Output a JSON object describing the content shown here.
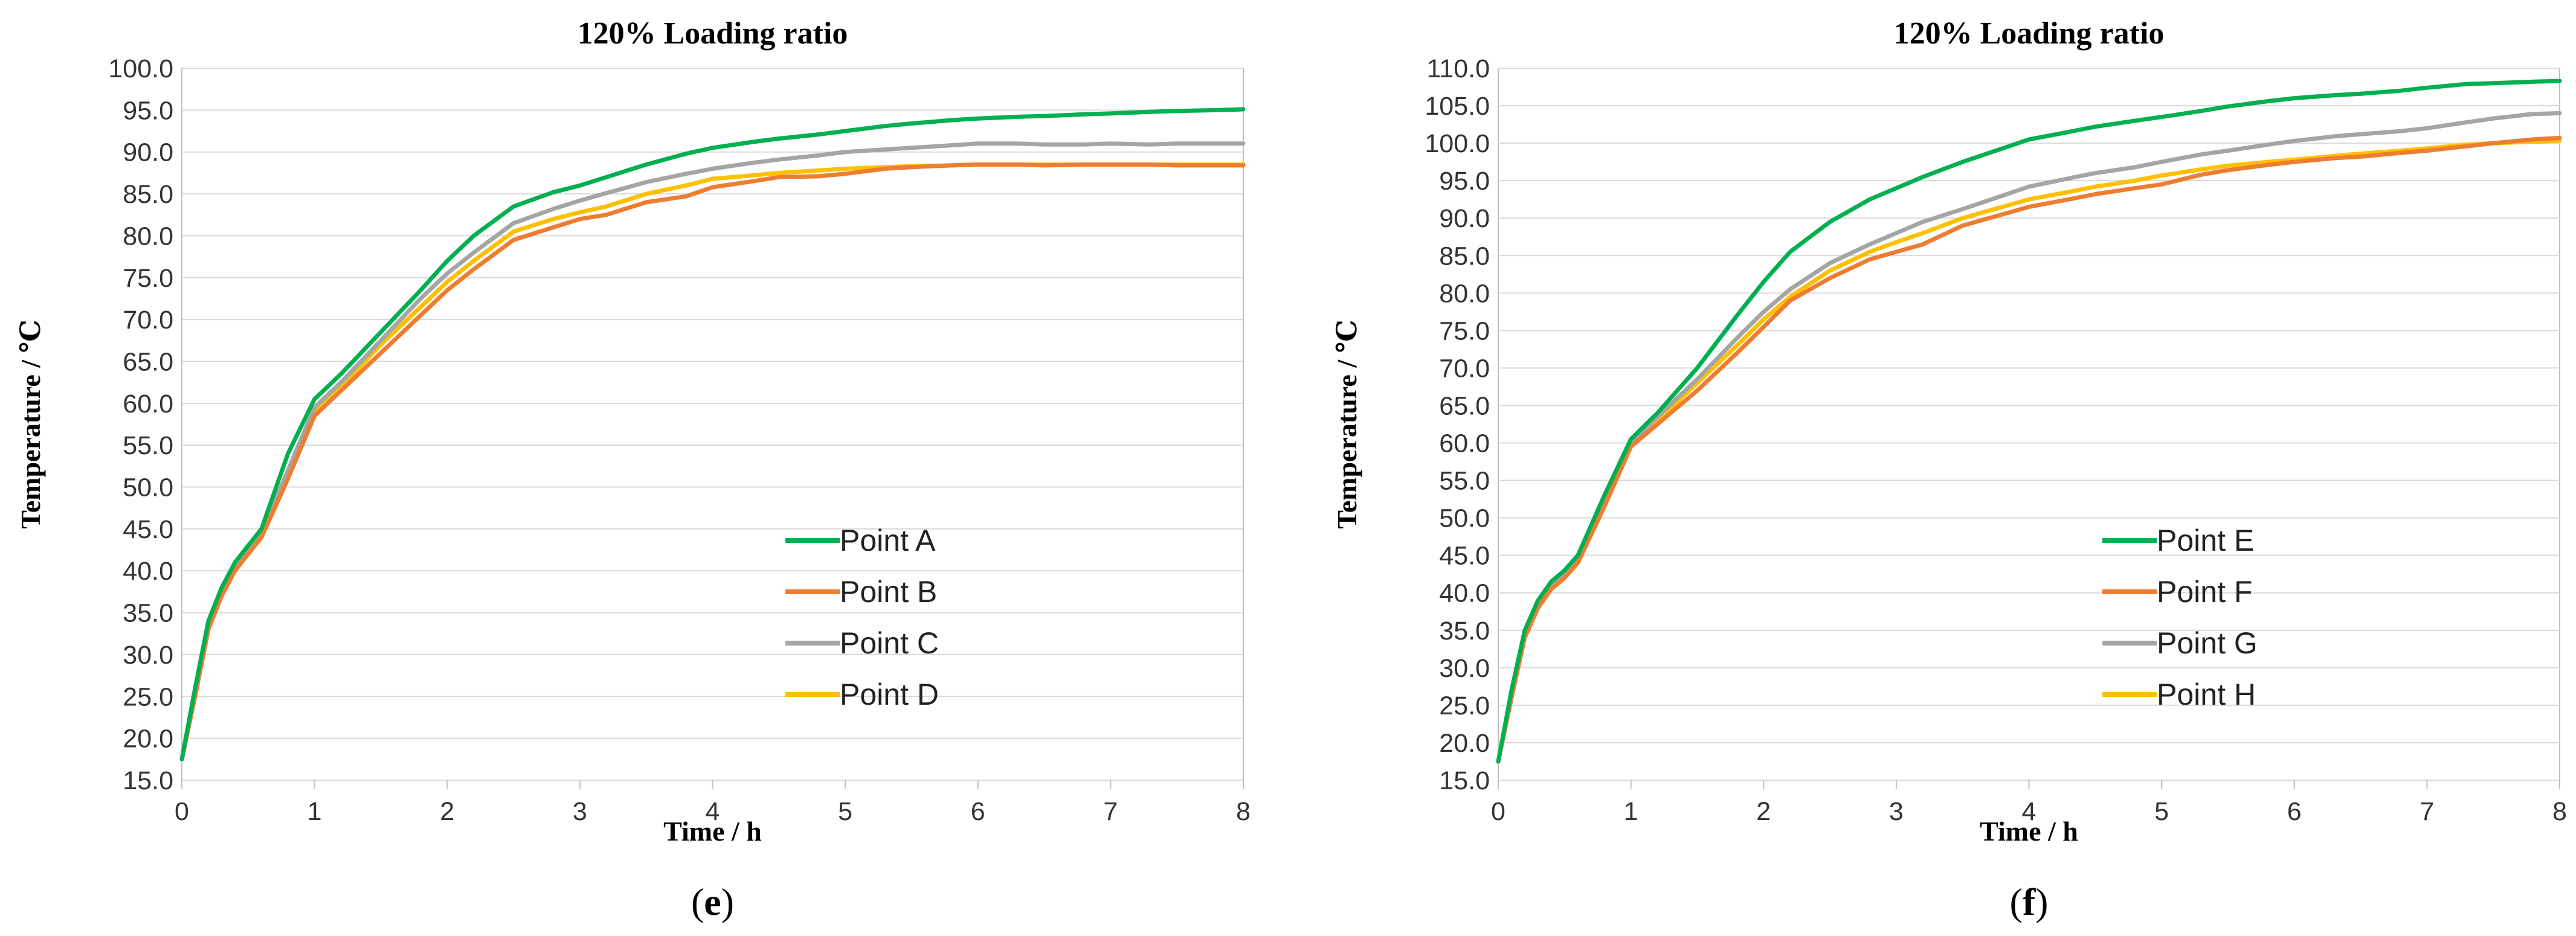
{
  "colors": {
    "grid": "#d9d9d9",
    "axis": "#bfbfbf",
    "series": [
      "#00b050",
      "#ed7d31",
      "#a5a5a5",
      "#ffc000"
    ]
  },
  "chart_data": [
    {
      "type": "line",
      "title": "120% Loading ratio",
      "xlabel": "Time / h",
      "ylabel": "Temperature / ℃",
      "xlim": [
        0,
        8
      ],
      "ylim": [
        15,
        100
      ],
      "xticks": [
        0,
        1,
        2,
        3,
        4,
        5,
        6,
        7,
        8
      ],
      "xtick_labels": [
        "0",
        "1",
        "2",
        "3",
        "4",
        "5",
        "6",
        "7",
        "8"
      ],
      "yticks": [
        15,
        20,
        25,
        30,
        35,
        40,
        45,
        50,
        55,
        60,
        65,
        70,
        75,
        80,
        85,
        90,
        95,
        100
      ],
      "ytick_labels": [
        "15.0",
        "20.0",
        "25.0",
        "30.0",
        "35.0",
        "40.0",
        "45.0",
        "50.0",
        "55.0",
        "60.0",
        "65.0",
        "70.0",
        "75.0",
        "80.0",
        "85.0",
        "90.0",
        "95.0",
        "100.0"
      ],
      "grid": true,
      "legend_position": "lower-right",
      "caption": "e",
      "x": [
        0,
        0.1,
        0.2,
        0.3,
        0.4,
        0.5,
        0.6,
        0.8,
        1.0,
        1.2,
        1.5,
        1.8,
        2.0,
        2.2,
        2.5,
        2.8,
        3.0,
        3.2,
        3.5,
        3.8,
        4.0,
        4.3,
        4.5,
        4.8,
        5.0,
        5.3,
        5.5,
        5.8,
        6.0,
        6.3,
        6.5,
        6.8,
        7.0,
        7.3,
        7.5,
        7.8,
        8.0
      ],
      "series": [
        {
          "name": "Point A",
          "values": [
            17.5,
            26,
            34,
            38,
            41,
            43,
            45,
            54,
            60.5,
            63.5,
            68.5,
            73.5,
            77,
            80,
            83.5,
            85.2,
            86,
            87,
            88.5,
            89.8,
            90.5,
            91.2,
            91.6,
            92.1,
            92.5,
            93.1,
            93.4,
            93.8,
            94,
            94.2,
            94.3,
            94.5,
            94.6,
            94.8,
            94.9,
            95,
            95.1
          ]
        },
        {
          "name": "Point B",
          "values": [
            17.5,
            25,
            33,
            37,
            40,
            42,
            44,
            51,
            58.5,
            61.5,
            66,
            70.5,
            73.5,
            76,
            79.5,
            81,
            82,
            82.5,
            84,
            84.7,
            85.8,
            86.5,
            87,
            87.1,
            87.4,
            88,
            88.2,
            88.4,
            88.5,
            88.5,
            88.4,
            88.5,
            88.5,
            88.5,
            88.4,
            88.4,
            88.4
          ]
        },
        {
          "name": "Point C",
          "values": [
            17.5,
            25.5,
            33.5,
            37.5,
            40.5,
            42.5,
            44.5,
            52,
            59.5,
            62.5,
            67.5,
            72.5,
            75.5,
            78,
            81.5,
            83.2,
            84.2,
            85.1,
            86.4,
            87.4,
            88,
            88.7,
            89.1,
            89.6,
            90,
            90.3,
            90.5,
            90.8,
            91,
            91,
            90.9,
            90.9,
            91,
            90.9,
            91,
            91,
            91
          ]
        },
        {
          "name": "Point D",
          "values": [
            17.5,
            25.2,
            33.2,
            37.2,
            40.2,
            42.2,
            44.2,
            51.5,
            59,
            62,
            67,
            71.5,
            74.5,
            77,
            80.5,
            82,
            82.8,
            83.5,
            85,
            86,
            86.8,
            87.2,
            87.5,
            87.8,
            88,
            88.2,
            88.3,
            88.4,
            88.5,
            88.5,
            88.5,
            88.5,
            88.5,
            88.5,
            88.5,
            88.5,
            88.5
          ]
        }
      ]
    },
    {
      "type": "line",
      "title": "120% Loading ratio",
      "xlabel": "Time / h",
      "ylabel": "Temperature / ℃",
      "xlim": [
        0,
        8
      ],
      "ylim": [
        15,
        110
      ],
      "xticks": [
        0,
        1,
        2,
        3,
        4,
        5,
        6,
        7,
        8
      ],
      "xtick_labels": [
        "0",
        "1",
        "2",
        "3",
        "4",
        "5",
        "6",
        "7",
        "8"
      ],
      "yticks": [
        15,
        20,
        25,
        30,
        35,
        40,
        45,
        50,
        55,
        60,
        65,
        70,
        75,
        80,
        85,
        90,
        95,
        100,
        105,
        110
      ],
      "ytick_labels": [
        "15.0",
        "20.0",
        "25.0",
        "30.0",
        "35.0",
        "40.0",
        "45.0",
        "50.0",
        "55.0",
        "60.0",
        "65.0",
        "70.0",
        "75.0",
        "80.0",
        "85.0",
        "90.0",
        "95.0",
        "100.0",
        "105.0",
        "110.0"
      ],
      "grid": true,
      "legend_position": "lower-right",
      "caption": "f",
      "x": [
        0,
        0.1,
        0.2,
        0.3,
        0.4,
        0.5,
        0.6,
        0.8,
        1.0,
        1.2,
        1.5,
        1.8,
        2.0,
        2.2,
        2.5,
        2.8,
        3.0,
        3.2,
        3.5,
        3.8,
        4.0,
        4.3,
        4.5,
        4.8,
        5.0,
        5.3,
        5.5,
        5.8,
        6.0,
        6.3,
        6.5,
        6.8,
        7.0,
        7.3,
        7.5,
        7.8,
        8.0
      ],
      "series": [
        {
          "name": "Point E",
          "values": [
            17.5,
            27,
            35,
            39,
            41.5,
            43,
            45,
            53,
            60.5,
            64,
            70,
            77,
            81.5,
            85.5,
            89.5,
            92.5,
            94,
            95.5,
            97.5,
            99.3,
            100.5,
            101.5,
            102.2,
            103,
            103.5,
            104.3,
            104.9,
            105.6,
            106,
            106.4,
            106.6,
            107,
            107.4,
            107.9,
            108,
            108.2,
            108.3
          ]
        },
        {
          "name": "Point F",
          "values": [
            17.5,
            26,
            34,
            38,
            40.5,
            42,
            44,
            51.5,
            59.5,
            62.5,
            67,
            72,
            75.5,
            79,
            82,
            84.5,
            85.5,
            86.5,
            89,
            90.5,
            91.5,
            92.5,
            93.2,
            94,
            94.5,
            95.8,
            96.4,
            97.1,
            97.5,
            98,
            98.2,
            98.7,
            99,
            99.6,
            100,
            100.5,
            100.7
          ]
        },
        {
          "name": "Point G",
          "values": [
            17.5,
            26.5,
            34.5,
            38.5,
            41,
            42.5,
            44.5,
            52,
            60,
            63.5,
            68.5,
            74,
            77.5,
            80.5,
            84,
            86.5,
            88,
            89.5,
            91.2,
            93,
            94.2,
            95.3,
            96,
            96.8,
            97.5,
            98.5,
            99,
            99.8,
            100.3,
            100.9,
            101.2,
            101.6,
            102,
            102.8,
            103.3,
            103.9,
            104
          ]
        },
        {
          "name": "Point H",
          "values": [
            17.5,
            26.2,
            34.2,
            38.2,
            40.7,
            42.2,
            44.2,
            51.8,
            59.8,
            63,
            68,
            73,
            76.5,
            79.5,
            83,
            85.5,
            86.8,
            88,
            90,
            91.5,
            92.5,
            93.5,
            94.2,
            95,
            95.7,
            96.5,
            97,
            97.5,
            97.8,
            98.3,
            98.6,
            99,
            99.3,
            99.8,
            100,
            100.2,
            100.3
          ]
        }
      ]
    }
  ]
}
